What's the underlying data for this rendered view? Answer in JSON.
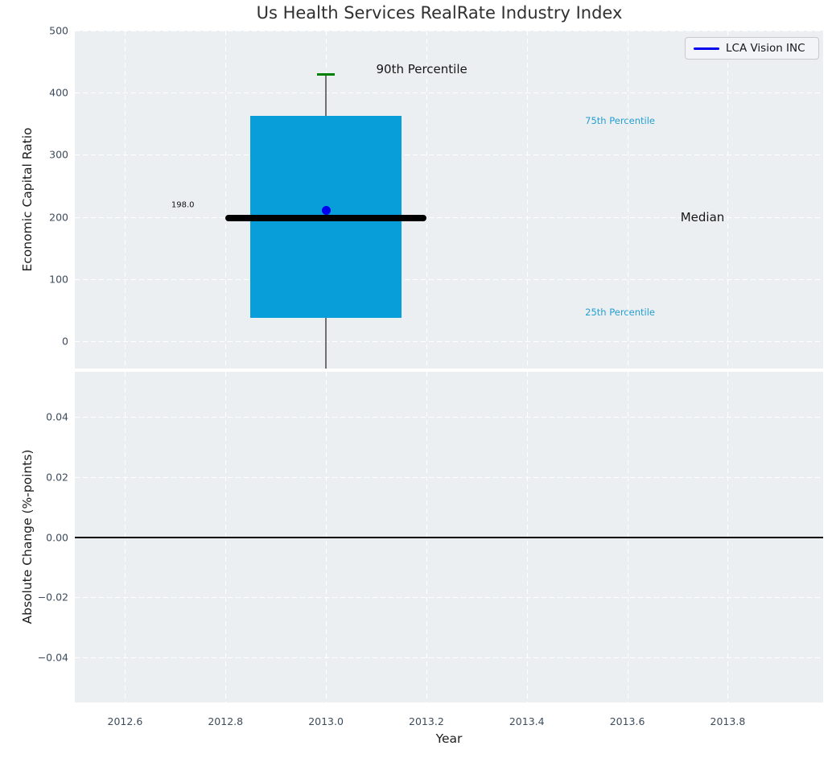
{
  "title": "Us Health Services RealRate Industry Index",
  "legend": {
    "label": "LCA Vision INC",
    "line_color": "#0000EE"
  },
  "colors": {
    "axes_background": "#ECEFF1",
    "grid": "#FFFFFF",
    "tick_label": "#3D4C5C",
    "box_fill": "#089ED9",
    "percentile_label": "#259FD2",
    "median_line": "#000000",
    "whisker": "#707070",
    "cap": "#008000",
    "company_marker": "#0000EE",
    "zero_line": "#000000"
  },
  "chart_data": [
    {
      "type": "boxplot",
      "panel": "top",
      "title": "Us Health Services RealRate Industry Index",
      "ylabel": "Economic Capital Ratio",
      "xlim": [
        2012.5,
        2013.99
      ],
      "ylim": [
        -44,
        500
      ],
      "yticks": [
        0,
        100,
        200,
        300,
        400,
        500
      ],
      "ytick_labels": [
        "0",
        "100",
        "200",
        "300",
        "400",
        "500"
      ],
      "xticks": [
        2012.6,
        2012.8,
        2013.0,
        2013.2,
        2013.4,
        2013.6,
        2013.8
      ],
      "grid": true,
      "legend": {
        "label": "LCA Vision INC",
        "position": "upper right"
      },
      "box": {
        "x": 2013.0,
        "p90": 429,
        "p75": 363,
        "median": 198.0,
        "p25": 37,
        "whisker_extends_below_axis": true,
        "box_half_width": 0.15,
        "median_half_width": 0.2,
        "cap_half_width": 0.018
      },
      "company_point": {
        "name": "LCA Vision INC",
        "x": 2013.0,
        "y": 210
      },
      "annotations": [
        {
          "text": "198.0",
          "x": 2012.715,
          "y": 219,
          "role": "median-value-label",
          "anchor": "center",
          "cls": "ann-tiny"
        },
        {
          "text": "90th Percentile",
          "x": 2013.1,
          "y": 438,
          "role": "p90-label",
          "anchor": "left",
          "cls": "ann-big"
        },
        {
          "text": "75th Percentile",
          "x": 2013.516,
          "y": 355,
          "role": "p75-label",
          "anchor": "left",
          "cls": "ann-cyan"
        },
        {
          "text": "Median",
          "x": 2013.706,
          "y": 199,
          "role": "median-label",
          "anchor": "left",
          "cls": "ann-big"
        },
        {
          "text": "25th Percentile",
          "x": 2013.516,
          "y": 47,
          "role": "p25-label",
          "anchor": "left",
          "cls": "ann-cyan"
        }
      ]
    },
    {
      "type": "line",
      "panel": "bottom",
      "xlabel": "Year",
      "ylabel": "Absolute Change (%-points)",
      "xlim": [
        2012.5,
        2013.99
      ],
      "ylim": [
        -0.0549,
        0.0549
      ],
      "yticks": [
        -0.04,
        -0.02,
        0,
        0.02,
        0.04
      ],
      "ytick_labels": [
        "−0.04",
        "−0.02",
        "0.00",
        "0.02",
        "0.04"
      ],
      "xticks": [
        2012.6,
        2012.8,
        2013.0,
        2013.2,
        2013.4,
        2013.6,
        2013.8
      ],
      "xtick_labels": [
        "2012.6",
        "2012.8",
        "2013.0",
        "2013.2",
        "2013.4",
        "2013.6",
        "2013.8"
      ],
      "grid": true,
      "zero_line_y": 0.0,
      "series": [
        {
          "name": "LCA Vision INC",
          "color": "#000000",
          "x": [
            2012.5,
            2013.99
          ],
          "y": [
            0.0,
            0.0
          ]
        }
      ]
    }
  ]
}
